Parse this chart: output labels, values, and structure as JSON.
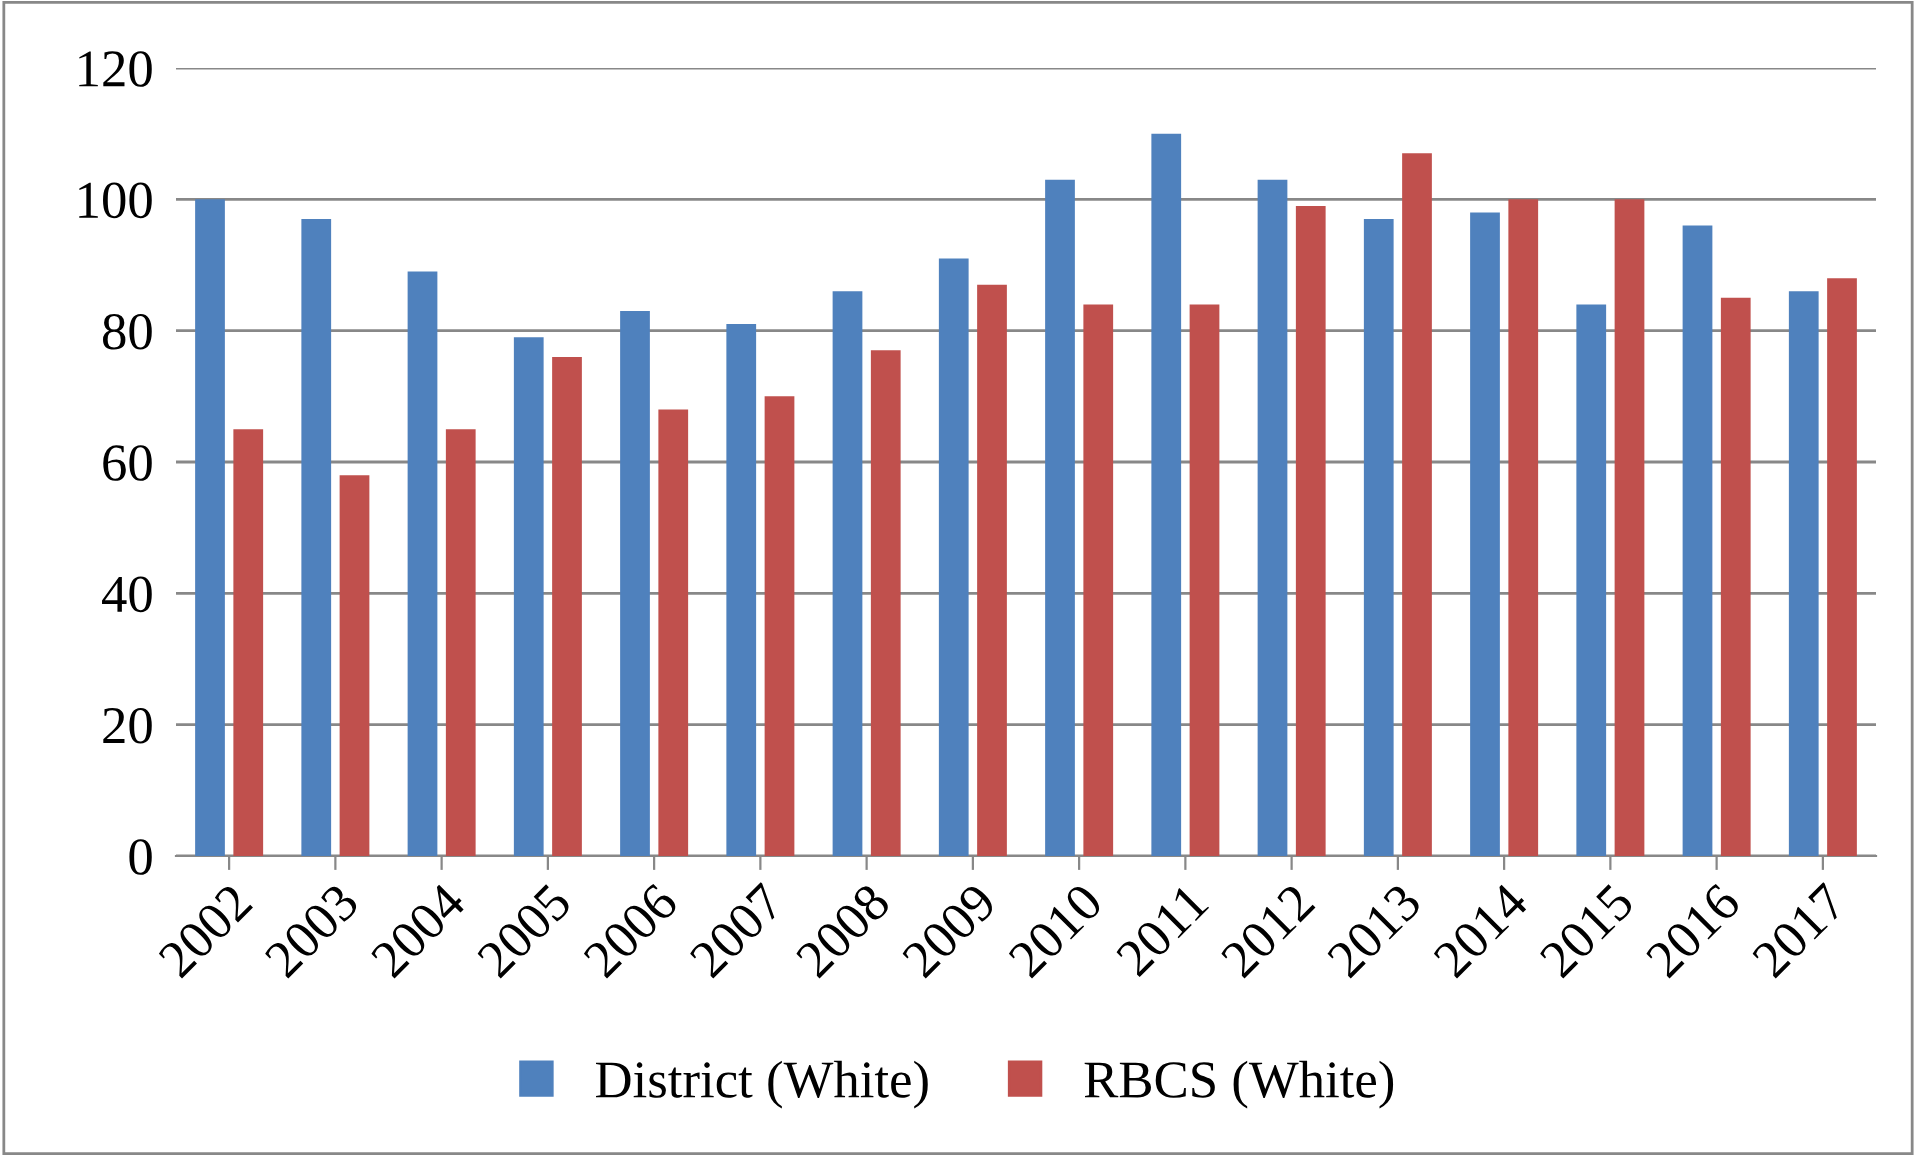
{
  "chart_data": {
    "type": "bar",
    "categories": [
      "2002",
      "2003",
      "2004",
      "2005",
      "2006",
      "2007",
      "2008",
      "2009",
      "2010",
      "2011",
      "2012",
      "2013",
      "2014",
      "2015",
      "2016",
      "2017"
    ],
    "series": [
      {
        "name": "District (White)",
        "color": "#4f81bd",
        "values": [
          100,
          97,
          89,
          79,
          83,
          81,
          86,
          91,
          103,
          110,
          103,
          97,
          98,
          84,
          96,
          86
        ]
      },
      {
        "name": "RBCS (White)",
        "color": "#c0504d",
        "values": [
          65,
          58,
          65,
          76,
          68,
          70,
          77,
          87,
          84,
          84,
          99,
          107,
          100,
          100,
          85,
          88
        ]
      }
    ],
    "ylim": [
      0,
      120
    ],
    "yticks": [
      0,
      20,
      40,
      60,
      80,
      100,
      120
    ],
    "grid": "y",
    "legend": "bottom"
  }
}
